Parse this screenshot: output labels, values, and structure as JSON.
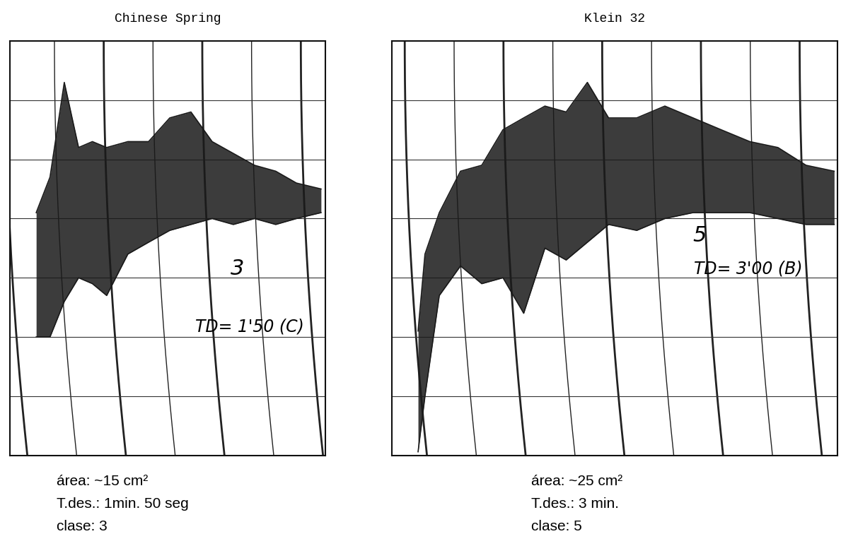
{
  "chart_data": [
    {
      "type": "area",
      "title": "Chinese Spring",
      "x": [
        0.43,
        0.71,
        1.0,
        1.29,
        1.57,
        1.86,
        2.29,
        2.71,
        3.14,
        3.57,
        4.0,
        4.43,
        4.86,
        5.29,
        5.71,
        6.21
      ],
      "series": [
        {
          "color": "#1a1a1a",
          "values": [
            41,
            47,
            63,
            52,
            53,
            52,
            53,
            53,
            57,
            58,
            53,
            51,
            49,
            48,
            46,
            45
          ]
        },
        {
          "color": "#1a1a1a",
          "values": [
            20,
            20,
            26,
            30,
            29,
            27,
            34,
            36,
            38,
            39,
            40,
            39,
            40,
            39,
            40,
            41
          ]
        }
      ],
      "xlim": [
        -0.1,
        6.3
      ],
      "ylim": [
        0,
        70
      ],
      "xticks": [
        0,
        1,
        2,
        3,
        4,
        5,
        6
      ],
      "yticks": [
        10,
        20,
        30,
        40,
        50,
        60
      ],
      "grid": true,
      "tick_labels": false,
      "annotations": [
        "3",
        "TD= 1'50 (C)"
      ],
      "caption": [
        "área: ~15 cm²",
        "T.des.: 1min. 50 seg",
        "clase: 3"
      ]
    },
    {
      "type": "area",
      "title": "Klein 32",
      "x": [
        0.07,
        0.21,
        0.5,
        0.93,
        1.36,
        1.79,
        2.21,
        2.64,
        3.07,
        3.5,
        3.93,
        4.5,
        5.07,
        5.64,
        6.21,
        6.79,
        7.36,
        7.93,
        8.5
      ],
      "series": [
        {
          "color": "#1a1a1a",
          "values": [
            21,
            34,
            41,
            48,
            49,
            55,
            57,
            59,
            58,
            63,
            57,
            57,
            59,
            57,
            55,
            53,
            52,
            49,
            48
          ]
        },
        {
          "color": "#1a1a1a",
          "values": [
            0.6,
            10,
            27,
            32,
            29,
            30,
            24,
            35,
            33,
            36,
            39,
            38,
            40,
            41,
            41,
            41,
            40,
            39,
            39
          ]
        }
      ],
      "xlim": [
        -0.46,
        8.57
      ],
      "ylim": [
        0,
        70
      ],
      "xticks": [
        0,
        1,
        2,
        3,
        4,
        5,
        6,
        7,
        8
      ],
      "yticks": [
        10,
        20,
        30,
        40,
        50,
        60
      ],
      "grid": true,
      "tick_labels": false,
      "annotations": [
        "5",
        "TD= 3'00 (B)"
      ],
      "caption": [
        "área: ~25 cm²",
        "T.des.: 3 min.",
        "clase: 5"
      ]
    }
  ]
}
